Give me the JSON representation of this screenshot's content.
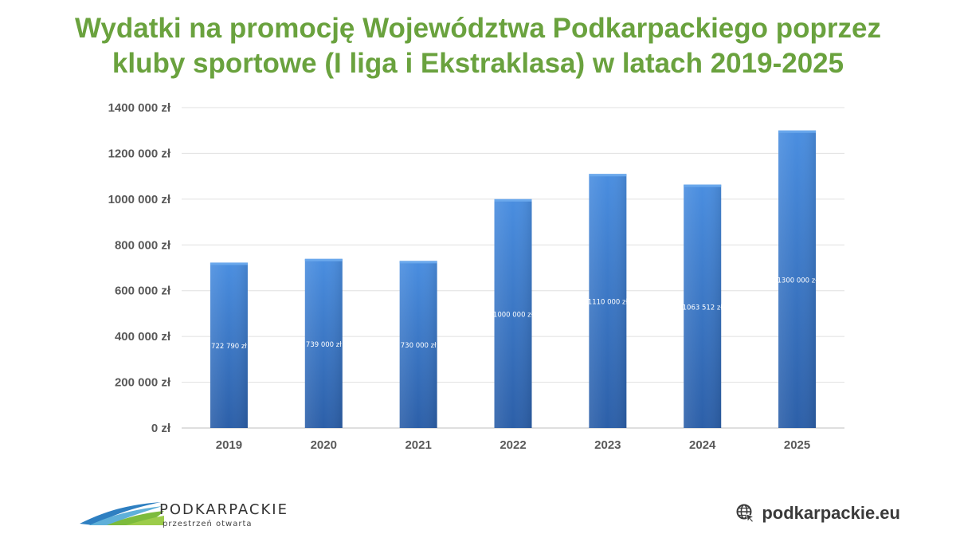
{
  "title_lines": [
    "Wydatki na promocję Województwa Podkarpackiego poprzez",
    "kluby sportowe (I liga i Ekstraklasa) w latach 2019-2025"
  ],
  "chart_data": {
    "type": "bar",
    "categories": [
      "2019",
      "2020",
      "2021",
      "2022",
      "2023",
      "2024",
      "2025"
    ],
    "values": [
      722790,
      739000,
      730000,
      1000000,
      1110000,
      1063512,
      1300000
    ],
    "data_labels": [
      "722 790 zł",
      "739 000 zł",
      "730 000 zł",
      "1000 000 zł",
      "1110 000 zł",
      "1063 512 zł",
      "1300 000 zł"
    ],
    "y_ticks": [
      0,
      200000,
      400000,
      600000,
      800000,
      1000000,
      1200000,
      1400000
    ],
    "y_tick_labels": [
      "0 zł",
      "200 000 zł",
      "400 000 zł",
      "600 000 zł",
      "800 000 zł",
      "1000 000 zł",
      "1200 000 zł",
      "1400 000 zł"
    ],
    "ylim": [
      0,
      1400000
    ],
    "grid": true,
    "legend": "none",
    "bar_color": "#3a78c9"
  },
  "footer": {
    "brand_name": "PODKARPACKIE",
    "brand_tagline": "przestrzeń otwarta",
    "website": "podkarpackie.eu",
    "website_icon": "globe-cursor-icon"
  },
  "colors": {
    "title": "#6aa23e",
    "bar_top": "#4a8ee0",
    "bar_bottom": "#2c5fa8",
    "grid": "#d9d9d9",
    "axis_text": "#595959"
  }
}
